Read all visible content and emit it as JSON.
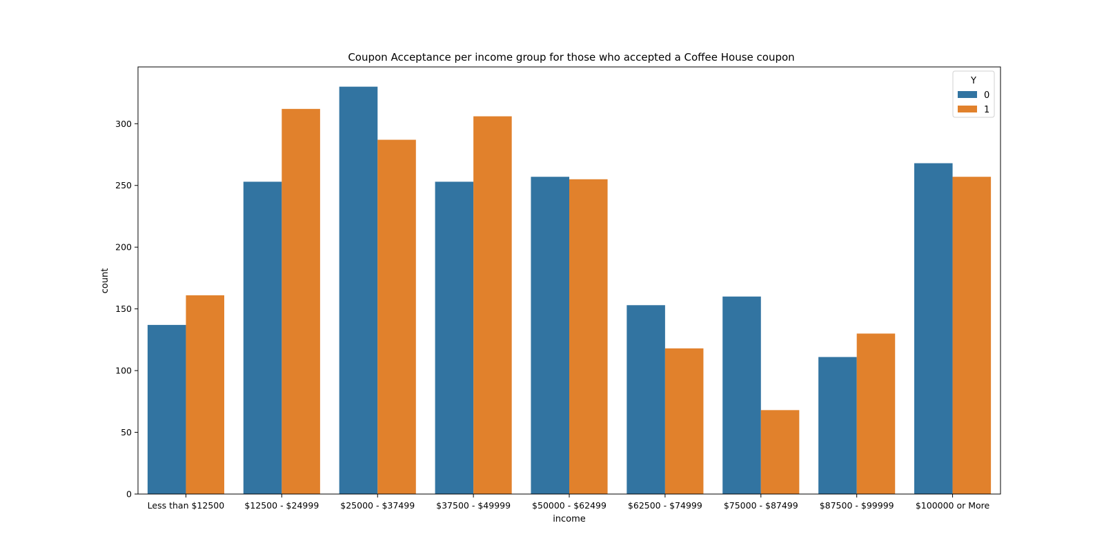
{
  "chart_data": {
    "type": "bar",
    "title": "Coupon Acceptance per income group for those who accepted a Coffee House coupon",
    "xlabel": "income",
    "ylabel": "count",
    "categories": [
      "Less than $12500",
      "$12500 - $24999",
      "$25000 - $37499",
      "$37500 - $49999",
      "$50000 - $62499",
      "$62500 - $74999",
      "$75000 - $87499",
      "$87500 - $99999",
      "$100000 or More"
    ],
    "series": [
      {
        "name": "0",
        "color": "#3274a1",
        "values": [
          137,
          253,
          330,
          253,
          257,
          153,
          160,
          111,
          268
        ]
      },
      {
        "name": "1",
        "color": "#e1812c",
        "values": [
          161,
          312,
          287,
          306,
          255,
          118,
          68,
          130,
          257
        ]
      }
    ],
    "legend": {
      "title": "Y",
      "position": "top-right"
    },
    "ylim": [
      0,
      346
    ],
    "yticks": [
      0,
      50,
      100,
      150,
      200,
      250,
      300
    ],
    "grid": false
  }
}
